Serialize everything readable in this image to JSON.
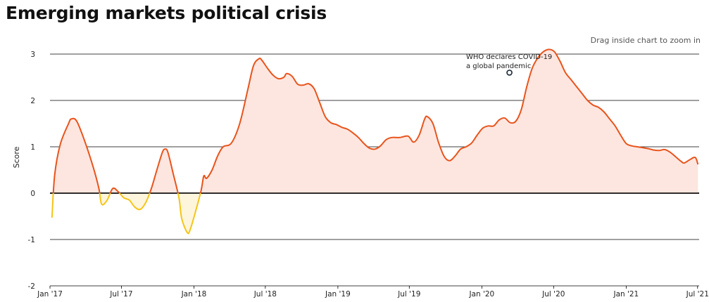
{
  "header": {
    "title": "Emerging markets political crisis",
    "zoom_hint": "Drag inside chart to zoom in"
  },
  "colors": {
    "positive_line": "#e8541c",
    "negative_line": "#f5c518",
    "positive_fill": "#fde6e0",
    "negative_fill": "#fdf5dc",
    "grid": "#000000"
  },
  "chart_data": {
    "type": "area",
    "title": "Emerging markets political crisis",
    "xlabel": "",
    "ylabel": "Score",
    "ylim": [
      -2,
      3
    ],
    "yticks": [
      3,
      2,
      1,
      0,
      -1,
      -2
    ],
    "xlim": [
      "2017-01-01",
      "2021-07-05"
    ],
    "xticks": [
      {
        "date": "2017-01-01",
        "label": "Jan '17"
      },
      {
        "date": "2017-07-01",
        "label": "Jul '17"
      },
      {
        "date": "2018-01-01",
        "label": "Jan '18"
      },
      {
        "date": "2018-07-01",
        "label": "Jul '18"
      },
      {
        "date": "2019-01-01",
        "label": "Jan '19"
      },
      {
        "date": "2019-07-01",
        "label": "Jul '19"
      },
      {
        "date": "2020-01-01",
        "label": "Jan '20"
      },
      {
        "date": "2020-07-01",
        "label": "Jul '20"
      },
      {
        "date": "2021-01-01",
        "label": "Jan '21"
      },
      {
        "date": "2021-07-01",
        "label": "Jul '21"
      }
    ],
    "grid": true,
    "legend": "none",
    "series": [
      {
        "points": [
          [
            "2017-01-06",
            -0.53
          ],
          [
            "2017-01-13",
            0.4
          ],
          [
            "2017-01-27",
            1.05
          ],
          [
            "2017-02-17",
            1.5
          ],
          [
            "2017-02-24",
            1.6
          ],
          [
            "2017-03-10",
            1.55
          ],
          [
            "2017-03-31",
            1.1
          ],
          [
            "2017-04-21",
            0.55
          ],
          [
            "2017-05-05",
            0.1
          ],
          [
            "2017-05-12",
            -0.24
          ],
          [
            "2017-05-26",
            -0.15
          ],
          [
            "2017-06-09",
            0.1
          ],
          [
            "2017-06-23",
            0.03
          ],
          [
            "2017-07-07",
            -0.1
          ],
          [
            "2017-07-21",
            -0.15
          ],
          [
            "2017-08-04",
            -0.3
          ],
          [
            "2017-08-18",
            -0.35
          ],
          [
            "2017-09-01",
            -0.2
          ],
          [
            "2017-09-15",
            0.1
          ],
          [
            "2017-09-29",
            0.5
          ],
          [
            "2017-10-13",
            0.88
          ],
          [
            "2017-10-20",
            0.95
          ],
          [
            "2017-10-27",
            0.88
          ],
          [
            "2017-11-10",
            0.4
          ],
          [
            "2017-11-24",
            -0.1
          ],
          [
            "2017-12-01",
            -0.55
          ],
          [
            "2017-12-15",
            -0.85
          ],
          [
            "2017-12-22",
            -0.8
          ],
          [
            "2018-01-05",
            -0.4
          ],
          [
            "2018-01-19",
            0.05
          ],
          [
            "2018-01-26",
            0.37
          ],
          [
            "2018-02-02",
            0.32
          ],
          [
            "2018-02-16",
            0.5
          ],
          [
            "2018-03-02",
            0.8
          ],
          [
            "2018-03-16",
            1.0
          ],
          [
            "2018-04-06",
            1.08
          ],
          [
            "2018-04-27",
            1.5
          ],
          [
            "2018-05-18",
            2.25
          ],
          [
            "2018-06-01",
            2.75
          ],
          [
            "2018-06-15",
            2.9
          ],
          [
            "2018-06-22",
            2.87
          ],
          [
            "2018-07-06",
            2.7
          ],
          [
            "2018-07-20",
            2.55
          ],
          [
            "2018-08-03",
            2.47
          ],
          [
            "2018-08-17",
            2.5
          ],
          [
            "2018-08-24",
            2.58
          ],
          [
            "2018-09-07",
            2.52
          ],
          [
            "2018-09-21",
            2.35
          ],
          [
            "2018-10-05",
            2.33
          ],
          [
            "2018-10-19",
            2.36
          ],
          [
            "2018-11-02",
            2.25
          ],
          [
            "2018-11-16",
            1.95
          ],
          [
            "2018-11-30",
            1.65
          ],
          [
            "2018-12-14",
            1.52
          ],
          [
            "2018-12-28",
            1.48
          ],
          [
            "2019-01-11",
            1.42
          ],
          [
            "2019-01-25",
            1.38
          ],
          [
            "2019-02-08",
            1.3
          ],
          [
            "2019-02-22",
            1.2
          ],
          [
            "2019-03-08",
            1.07
          ],
          [
            "2019-03-22",
            0.97
          ],
          [
            "2019-04-05",
            0.95
          ],
          [
            "2019-04-19",
            1.02
          ],
          [
            "2019-05-03",
            1.15
          ],
          [
            "2019-05-17",
            1.2
          ],
          [
            "2019-06-07",
            1.2
          ],
          [
            "2019-06-28",
            1.23
          ],
          [
            "2019-07-12",
            1.1
          ],
          [
            "2019-07-26",
            1.25
          ],
          [
            "2019-08-09",
            1.6
          ],
          [
            "2019-08-16",
            1.65
          ],
          [
            "2019-08-30",
            1.5
          ],
          [
            "2019-09-13",
            1.1
          ],
          [
            "2019-09-27",
            0.8
          ],
          [
            "2019-10-11",
            0.7
          ],
          [
            "2019-10-25",
            0.8
          ],
          [
            "2019-11-08",
            0.95
          ],
          [
            "2019-11-22",
            1.0
          ],
          [
            "2019-12-06",
            1.08
          ],
          [
            "2019-12-20",
            1.25
          ],
          [
            "2020-01-03",
            1.4
          ],
          [
            "2020-01-17",
            1.45
          ],
          [
            "2020-01-31",
            1.45
          ],
          [
            "2020-02-14",
            1.58
          ],
          [
            "2020-02-28",
            1.62
          ],
          [
            "2020-03-13",
            1.52
          ],
          [
            "2020-03-27",
            1.55
          ],
          [
            "2020-04-10",
            1.8
          ],
          [
            "2020-04-24",
            2.3
          ],
          [
            "2020-05-08",
            2.7
          ],
          [
            "2020-05-22",
            2.92
          ],
          [
            "2020-06-05",
            3.05
          ],
          [
            "2020-06-19",
            3.1
          ],
          [
            "2020-07-03",
            3.05
          ],
          [
            "2020-07-17",
            2.85
          ],
          [
            "2020-07-31",
            2.6
          ],
          [
            "2020-08-14",
            2.45
          ],
          [
            "2020-08-28",
            2.3
          ],
          [
            "2020-09-11",
            2.15
          ],
          [
            "2020-09-25",
            2.0
          ],
          [
            "2020-10-09",
            1.9
          ],
          [
            "2020-10-23",
            1.85
          ],
          [
            "2020-11-06",
            1.75
          ],
          [
            "2020-11-20",
            1.6
          ],
          [
            "2020-12-04",
            1.45
          ],
          [
            "2020-12-18",
            1.25
          ],
          [
            "2021-01-01",
            1.07
          ],
          [
            "2021-01-15",
            1.02
          ],
          [
            "2021-01-29",
            1.0
          ],
          [
            "2021-02-12",
            0.98
          ],
          [
            "2021-02-26",
            0.96
          ],
          [
            "2021-03-12",
            0.93
          ],
          [
            "2021-03-26",
            0.92
          ],
          [
            "2021-04-09",
            0.94
          ],
          [
            "2021-04-23",
            0.88
          ],
          [
            "2021-05-07",
            0.78
          ],
          [
            "2021-05-21",
            0.68
          ],
          [
            "2021-05-28",
            0.65
          ],
          [
            "2021-06-11",
            0.72
          ],
          [
            "2021-06-25",
            0.77
          ],
          [
            "2021-07-02",
            0.62
          ]
        ]
      }
    ],
    "annotations": [
      {
        "date": "2020-03-11",
        "value": 2.6,
        "lines": [
          "WHO declares COVID-19",
          "a global pandemic"
        ]
      }
    ]
  }
}
